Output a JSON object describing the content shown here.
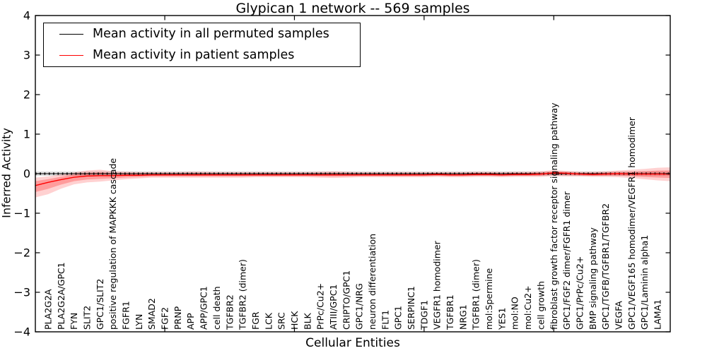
{
  "chart_data": {
    "type": "line",
    "title": "Glypican 1 network -- 569 samples",
    "xlabel": "Cellular Entities",
    "ylabel": "Inferred Activity",
    "ylim": [
      -4,
      4
    ],
    "yticks": [
      -4,
      -3,
      -2,
      -1,
      0,
      1,
      2,
      3,
      4
    ],
    "x_major_tick_indices": [
      9,
      19,
      29,
      39
    ],
    "grid": false,
    "legend_position": "upper left",
    "categories": [
      "PLA2G2A",
      "PLA2G2A/GPC1",
      "FYN",
      "SLIT2",
      "GPC1/SLIT2",
      "positive regulation of MAPKKK cascade",
      "FGFR1",
      "LYN",
      "SMAD2",
      "FGF2",
      "PRNP",
      "APP",
      "APP/GPC1",
      "cell death",
      "TGFBR2",
      "TGFBR2 (dimer)",
      "FGR",
      "LCK",
      "SRC",
      "HCK",
      "BLK",
      "PrPc/Cu2+",
      "ATIII/GPC1",
      "CRIPTO/GPC1",
      "GPC1/NRG",
      "neuron differentiation",
      "FLT1",
      "GPC1",
      "SERPINC1",
      "TDGF1",
      "VEGFR1 homodimer",
      "TGFBR1",
      "NRG1",
      "TGFBR1 (dimer)",
      "mol:Spermine",
      "YES1",
      "mol:NO",
      "mol:Cu2+",
      "cell growth",
      "fibroblast growth factor receptor signaling pathway",
      "GPC1/FGF2 dimer/FGFR1 dimer",
      "GPC1/PrPc/Cu2+",
      "BMP signaling pathway",
      "GPC1/TGFB/TGFBR1/TGFBR2",
      "VEGFA",
      "GPC1/VEGF165 homodimer/VEGFR1 homodimer",
      "GPC1/Laminin alpha1",
      "LAMA1"
    ],
    "series": [
      {
        "name": "Mean activity in all permuted samples",
        "color": "#000000",
        "style": "solid line with small vertical tick markers",
        "value_constant": 0.0,
        "band": [
          -0.055,
          0.055
        ],
        "band_color": "#000000"
      },
      {
        "name": "Mean activity in patient samples",
        "color": "#ff0000",
        "style": "solid line with shaded confidence band",
        "band_color": "#ff0000",
        "values": [
          -0.22,
          -0.15,
          -0.09,
          -0.06,
          -0.05,
          -0.05,
          -0.04,
          -0.04,
          -0.03,
          -0.03,
          -0.03,
          -0.03,
          -0.03,
          -0.03,
          -0.03,
          -0.03,
          -0.03,
          -0.03,
          -0.03,
          -0.03,
          -0.03,
          -0.03,
          -0.03,
          -0.03,
          -0.03,
          -0.03,
          -0.03,
          -0.03,
          -0.03,
          -0.03,
          -0.02,
          -0.03,
          -0.03,
          -0.02,
          -0.02,
          -0.03,
          -0.02,
          -0.02,
          -0.01,
          0.02,
          0.01,
          -0.01,
          -0.02,
          -0.01,
          0.0,
          -0.01,
          -0.01,
          -0.01
        ],
        "band_upper": [
          -0.07,
          -0.02,
          0.03,
          0.08,
          0.1,
          0.06,
          0.05,
          0.04,
          0.04,
          0.04,
          0.04,
          0.05,
          0.05,
          0.04,
          0.04,
          0.04,
          0.04,
          0.04,
          0.04,
          0.04,
          0.04,
          0.05,
          0.06,
          0.05,
          0.04,
          0.04,
          0.04,
          0.04,
          0.04,
          0.04,
          0.04,
          0.04,
          0.04,
          0.05,
          0.05,
          0.04,
          0.05,
          0.05,
          0.06,
          0.09,
          0.07,
          0.05,
          0.05,
          0.06,
          0.08,
          0.1,
          0.12,
          0.15
        ],
        "band_lower": [
          -0.52,
          -0.38,
          -0.27,
          -0.22,
          -0.2,
          -0.17,
          -0.14,
          -0.12,
          -0.1,
          -0.1,
          -0.1,
          -0.1,
          -0.1,
          -0.1,
          -0.1,
          -0.1,
          -0.09,
          -0.09,
          -0.09,
          -0.09,
          -0.09,
          -0.1,
          -0.11,
          -0.1,
          -0.09,
          -0.09,
          -0.09,
          -0.09,
          -0.09,
          -0.09,
          -0.08,
          -0.09,
          -0.09,
          -0.08,
          -0.08,
          -0.09,
          -0.08,
          -0.08,
          -0.08,
          -0.06,
          -0.07,
          -0.07,
          -0.08,
          -0.08,
          -0.09,
          -0.11,
          -0.14,
          -0.17
        ],
        "edge_extension": {
          "left": {
            "value": -0.3,
            "band_upper": -0.1,
            "band_lower": -0.6
          },
          "right": {
            "value": -0.01,
            "band_upper": 0.16,
            "band_lower": -0.19
          }
        }
      }
    ]
  },
  "legend": {
    "entries": [
      {
        "label": "Mean activity in all permuted samples",
        "color": "#000000"
      },
      {
        "label": "Mean activity in patient samples",
        "color": "#ff0000"
      }
    ]
  }
}
